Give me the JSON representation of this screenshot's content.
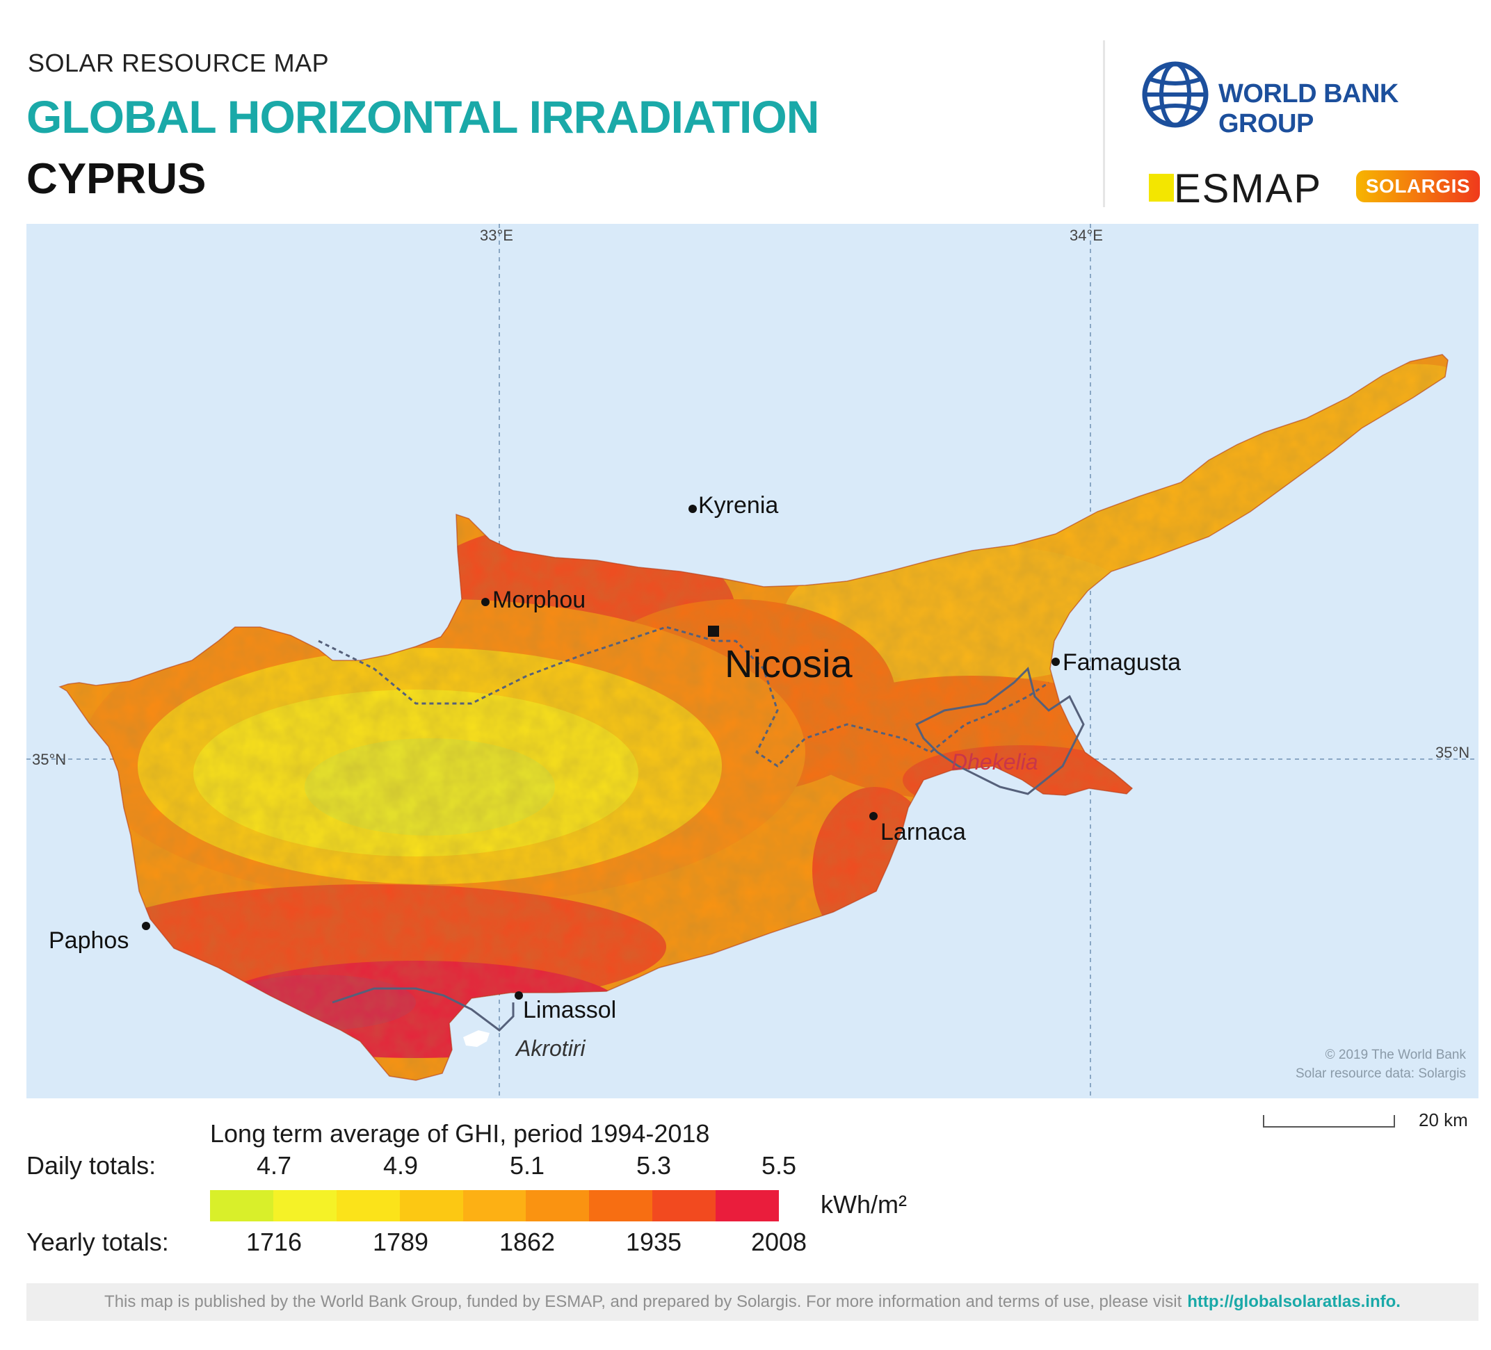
{
  "header": {
    "subtitle": "SOLAR RESOURCE MAP",
    "title": "GLOBAL HORIZONTAL IRRADIATION",
    "country": "CYPRUS",
    "logos": {
      "world_bank": "WORLD BANK GROUP",
      "esmap": "ESMAP",
      "solargis": "SOLARGIS"
    }
  },
  "map": {
    "graticule": {
      "lon_labels": [
        "33°E",
        "34°E"
      ],
      "lat_labels": [
        "35°N",
        "35°N"
      ]
    },
    "cities": {
      "nicosia": "Nicosia",
      "kyrenia": "Kyrenia",
      "morphou": "Morphou",
      "famagusta": "Famagusta",
      "larnaca": "Larnaca",
      "paphos": "Paphos",
      "limassol": "Limassol"
    },
    "sovereign_bases": {
      "dhekelia": "Dhekelia",
      "akrotiri": "Akrotiri"
    },
    "copyright_line1": "© 2019 The World Bank",
    "copyright_line2": "Solar resource data: Solargis",
    "scale_label": "20 km"
  },
  "legend": {
    "title": "Long term average of GHI, period 1994-2018",
    "daily_label": "Daily totals:",
    "yearly_label": "Yearly totals:",
    "unit": "kWh/m²",
    "daily_ticks": [
      "4.7",
      "4.9",
      "5.1",
      "5.3",
      "5.5"
    ],
    "yearly_ticks": [
      "1716",
      "1789",
      "1862",
      "1935",
      "2008"
    ],
    "colors": [
      "#d9ef2a",
      "#f5f227",
      "#fbe31a",
      "#fcc813",
      "#fdb014",
      "#fa9311",
      "#f76e12",
      "#f24a1f",
      "#ea1d3c"
    ]
  },
  "footer": {
    "text": "This map is published by the World Bank Group, funded by ESMAP, and prepared by Solargis. For more information and terms of use, please visit",
    "link": "http://globalsolaratlas.info."
  },
  "colors": {
    "accent_teal": "#1aa9a8",
    "sea": "#d9eaf9",
    "world_bank_blue": "#1c4f9c"
  }
}
